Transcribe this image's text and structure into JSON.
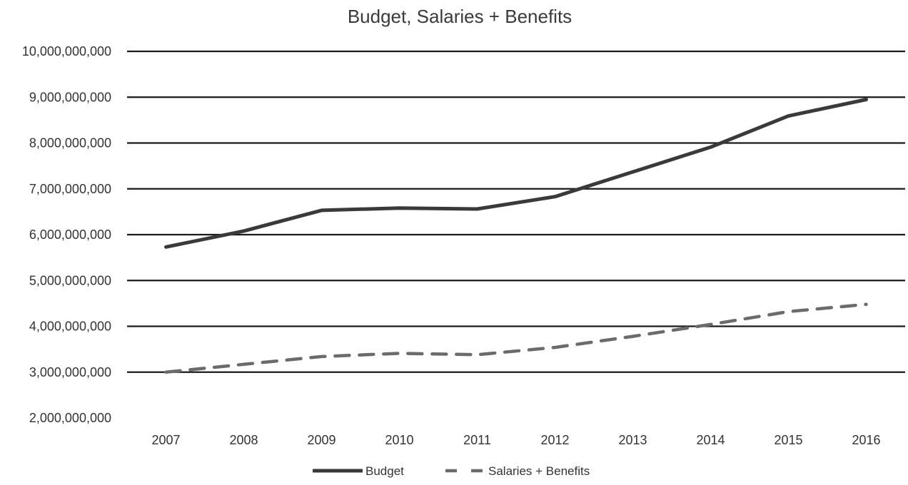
{
  "chart_data": {
    "type": "line",
    "title": "Budget, Salaries + Benefits",
    "xlabel": "",
    "ylabel": "",
    "categories": [
      "2007",
      "2008",
      "2009",
      "2010",
      "2011",
      "2012",
      "2013",
      "2014",
      "2015",
      "2016"
    ],
    "ylim": [
      2000000000,
      10000000000
    ],
    "yticks": [
      2000000000,
      3000000000,
      4000000000,
      5000000000,
      6000000000,
      7000000000,
      8000000000,
      9000000000,
      10000000000
    ],
    "ytick_labels": [
      "2,000,000,000",
      "3,000,000,000",
      "4,000,000,000",
      "5,000,000,000",
      "6,000,000,000",
      "7,000,000,000",
      "8,000,000,000",
      "9,000,000,000",
      "10,000,000,000"
    ],
    "grid": true,
    "legend_position": "bottom",
    "series": [
      {
        "name": "Budget",
        "style": "solid",
        "color": "#3a3a3a",
        "values": [
          5730000000,
          6080000000,
          6530000000,
          6580000000,
          6560000000,
          6830000000,
          7370000000,
          7910000000,
          8590000000,
          8950000000
        ]
      },
      {
        "name": "Salaries + Benefits",
        "style": "dashed",
        "color": "#6b6b6b",
        "values": [
          3000000000,
          3170000000,
          3340000000,
          3410000000,
          3380000000,
          3540000000,
          3780000000,
          4040000000,
          4320000000,
          4480000000
        ]
      }
    ]
  }
}
